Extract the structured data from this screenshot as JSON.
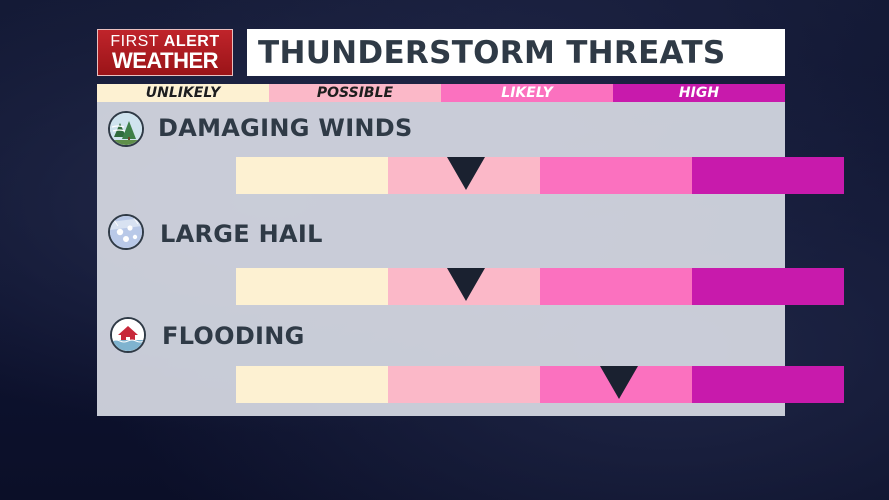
{
  "logo": {
    "line1_a": "FIRST ",
    "line1_b": "ALERT",
    "line2": "WEATHER"
  },
  "title": "THUNDERSTORM THREATS",
  "scale": {
    "levels": [
      "UNLIKELY",
      "POSSIBLE",
      "LIKELY",
      "HIGH"
    ],
    "colors": [
      "#fdf1d2",
      "#fbb8c8",
      "#fb71bf",
      "#c81aac"
    ]
  },
  "threats": [
    {
      "label": "DAMAGING WINDS",
      "icon": "wind-tree-icon",
      "level_index": 1,
      "position_fraction": 0.378
    },
    {
      "label": "LARGE HAIL",
      "icon": "hail-icon",
      "level_index": 1,
      "position_fraction": 0.378
    },
    {
      "label": "FLOODING",
      "icon": "flood-house-icon",
      "level_index": 2,
      "position_fraction": 0.63
    }
  ]
}
